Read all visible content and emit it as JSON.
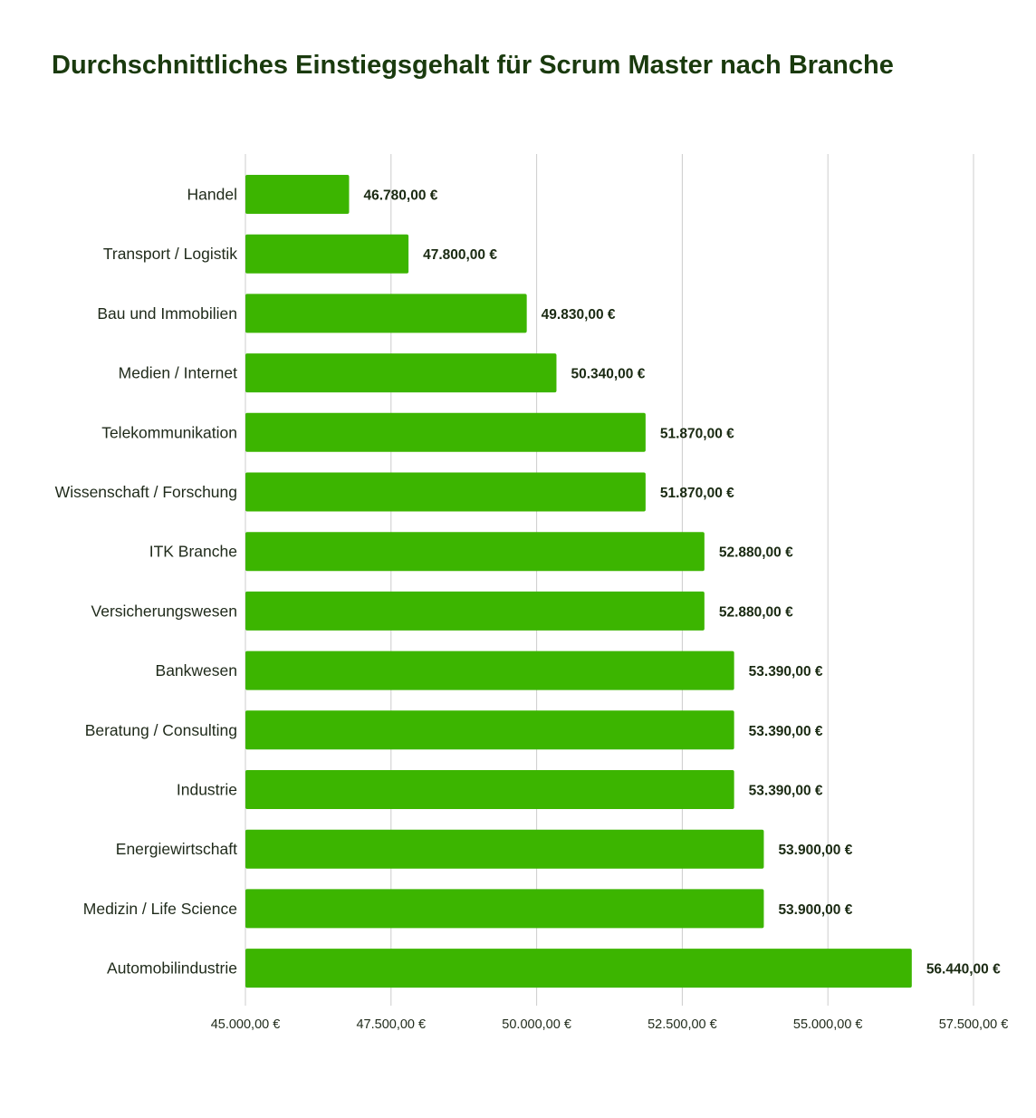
{
  "chart_data": {
    "type": "bar",
    "orientation": "horizontal",
    "title": "Durchschnittliches Einstiegsgehalt für Scrum Master nach Branche",
    "categories": [
      "Handel",
      "Transport / Logistik",
      "Bau und Immobilien",
      "Medien / Internet",
      "Telekommunikation",
      "Wissenschaft / Forschung",
      "ITK Branche",
      "Versicherungswesen",
      "Bankwesen",
      "Beratung / Consulting",
      "Industrie",
      "Energiewirtschaft",
      "Medizin / Life Science",
      "Automobilindustrie"
    ],
    "values": [
      46780,
      47800,
      49830,
      50340,
      51870,
      51870,
      52880,
      52880,
      53390,
      53390,
      53390,
      53900,
      53900,
      56440
    ],
    "value_labels": [
      "46.780,00 €",
      "47.800,00 €",
      "49.830,00 €",
      "50.340,00 €",
      "51.870,00 €",
      "51.870,00 €",
      "52.880,00 €",
      "52.880,00 €",
      "53.390,00 €",
      "53.390,00 €",
      "53.390,00 €",
      "53.900,00 €",
      "53.900,00 €",
      "56.440,00 €"
    ],
    "xlim": [
      45000,
      57500
    ],
    "xticks": [
      45000,
      47500,
      50000,
      52500,
      55000,
      57500
    ],
    "xtick_labels": [
      "45.000,00 €",
      "47.500,00 €",
      "50.000,00 €",
      "52.500,00 €",
      "55.000,00 €",
      "57.500,00 €"
    ],
    "grid": true,
    "legend": "none",
    "colors": {
      "bar": "#3cb500",
      "title": "#1a3a0e",
      "grid": "#cccccc"
    }
  }
}
